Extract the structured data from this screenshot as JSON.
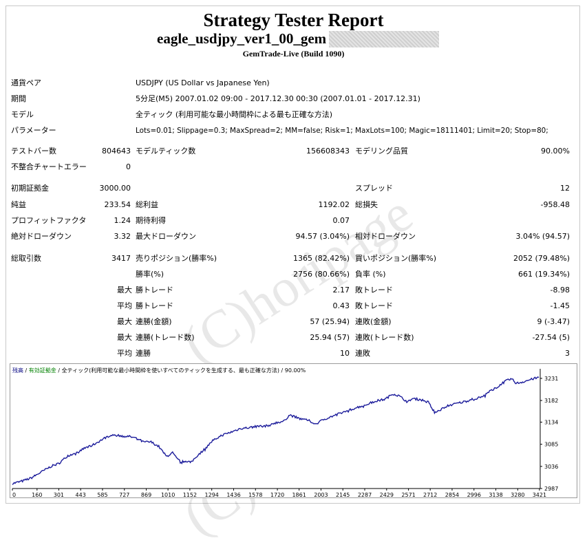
{
  "header": {
    "title": "Strategy Tester Report",
    "ea_name": "eagle_usdjpy_ver1_00_gem",
    "build": "GemTrade-Live (Build 1090)"
  },
  "info_rows": [
    {
      "label": "通貨ペア",
      "value": "USDJPY (US Dollar vs Japanese Yen)"
    },
    {
      "label": "期間",
      "value": "5分足(M5) 2007.01.02 09:00 - 2017.12.30 00:30 (2007.01.01 - 2017.12.31)"
    },
    {
      "label": "モデル",
      "value": "全ティック (利用可能な最小時間枠による最も正確な方法)"
    },
    {
      "label": "パラメーター",
      "value": "Lots=0.01; Slippage=0.3; MaxSpread=2; MM=false; Risk=1; MaxLots=100; Magic=18111401; Limit=20; Stop=80;"
    }
  ],
  "stats": {
    "bars_label": "テストバー数",
    "bars": "804643",
    "ticks_label": "モデルティック数",
    "ticks": "156608343",
    "quality_label": "モデリング品質",
    "quality": "90.00%",
    "mismatch_label": "不整合チャートエラー",
    "mismatch": "0",
    "deposit_label": "初期証拠金",
    "deposit": "3000.00",
    "spread_label": "スプレッド",
    "spread": "12",
    "net_label": "純益",
    "net": "233.54",
    "gross_profit_label": "総利益",
    "gross_profit": "1192.02",
    "gross_loss_label": "総損失",
    "gross_loss": "-958.48",
    "pf_label": "プロフィットファクタ",
    "pf": "1.24",
    "expected_label": "期待利得",
    "expected": "0.07",
    "abs_dd_label": "絶対ドローダウン",
    "abs_dd": "3.32",
    "max_dd_label": "最大ドローダウン",
    "max_dd": "94.57 (3.04%)",
    "rel_dd_label": "相対ドローダウン",
    "rel_dd": "3.04% (94.57)",
    "trades_label": "総取引数",
    "trades": "3417",
    "short_label": "売りポジション(勝率%)",
    "short": "1365 (82.42%)",
    "long_label": "買いポジション(勝率%)",
    "long": "2052 (79.48%)",
    "win_label": "勝率(%)",
    "win": "2756 (80.66%)",
    "loss_label": "負率 (%)",
    "loss": "661 (19.34%)",
    "max_word": "最大",
    "avg_word": "平均",
    "largest_win_label": "勝トレード",
    "largest_win": "2.17",
    "largest_loss_label": "敗トレード",
    "largest_loss": "-8.98",
    "avg_win_label": "勝トレード",
    "avg_win": "0.43",
    "avg_loss_label": "敗トレード",
    "avg_loss": "-1.45",
    "max_cons_win_label": "連勝(金額)",
    "max_cons_win": "57 (25.94)",
    "max_cons_loss_label": "連敗(金額)",
    "max_cons_loss": "9 (-3.47)",
    "max_cons_profit_label": "連勝(トレード数)",
    "max_cons_profit": "25.94 (57)",
    "max_cons_lossamt_label": "連敗(トレード数)",
    "max_cons_lossamt": "-27.54 (5)",
    "avg_cons_win_label": "連勝",
    "avg_cons_win": "10",
    "avg_cons_loss_label": "連敗",
    "avg_cons_loss": "3"
  },
  "chart_legend": {
    "balance": "残高",
    "sep1": " / ",
    "equity": "有効証拠金",
    "sep2": " / ",
    "desc": "全ティック(利用可能な最小時間枠を使いすべてのティックを生成する、最も正確な方法)",
    "sep3": " / ",
    "quality": "90.00%"
  },
  "watermark": "(C)horipage",
  "colors": {
    "balance_line": "#1a1a9a",
    "legend_balance": "#000080",
    "legend_equity": "#008000"
  },
  "chart_data": {
    "type": "line",
    "x_ticks": [
      0,
      160,
      301,
      443,
      585,
      727,
      869,
      1010,
      1152,
      1294,
      1436,
      1578,
      1720,
      1861,
      2003,
      2145,
      2287,
      2429,
      2571,
      2712,
      2854,
      2996,
      3138,
      3280,
      3421
    ],
    "y_ticks": [
      2987,
      3036,
      3085,
      3134,
      3182,
      3231
    ],
    "xlim": [
      0,
      3417
    ],
    "ylim": [
      2987,
      3240
    ],
    "anchors": [
      [
        0,
        2998
      ],
      [
        60,
        3003
      ],
      [
        120,
        3010
      ],
      [
        190,
        3024
      ],
      [
        250,
        3036
      ],
      [
        300,
        3042
      ],
      [
        360,
        3060
      ],
      [
        410,
        3064
      ],
      [
        460,
        3075
      ],
      [
        520,
        3083
      ],
      [
        580,
        3095
      ],
      [
        640,
        3106
      ],
      [
        700,
        3104
      ],
      [
        760,
        3102
      ],
      [
        810,
        3098
      ],
      [
        850,
        3090
      ],
      [
        900,
        3090
      ],
      [
        950,
        3080
      ],
      [
        1000,
        3058
      ],
      [
        1040,
        3066
      ],
      [
        1070,
        3052
      ],
      [
        1100,
        3046
      ],
      [
        1130,
        3048
      ],
      [
        1160,
        3045
      ],
      [
        1200,
        3060
      ],
      [
        1250,
        3075
      ],
      [
        1300,
        3093
      ],
      [
        1360,
        3105
      ],
      [
        1420,
        3112
      ],
      [
        1480,
        3120
      ],
      [
        1540,
        3122
      ],
      [
        1600,
        3125
      ],
      [
        1660,
        3126
      ],
      [
        1700,
        3132
      ],
      [
        1760,
        3136
      ],
      [
        1800,
        3150
      ],
      [
        1860,
        3142
      ],
      [
        1920,
        3138
      ],
      [
        1970,
        3130
      ],
      [
        2020,
        3140
      ],
      [
        2100,
        3150
      ],
      [
        2180,
        3160
      ],
      [
        2230,
        3166
      ],
      [
        2290,
        3172
      ],
      [
        2350,
        3180
      ],
      [
        2420,
        3185
      ],
      [
        2470,
        3197
      ],
      [
        2510,
        3192
      ],
      [
        2560,
        3180
      ],
      [
        2600,
        3186
      ],
      [
        2650,
        3184
      ],
      [
        2700,
        3178
      ],
      [
        2740,
        3156
      ],
      [
        2780,
        3162
      ],
      [
        2820,
        3170
      ],
      [
        2880,
        3175
      ],
      [
        2940,
        3180
      ],
      [
        2990,
        3185
      ],
      [
        3050,
        3190
      ],
      [
        3110,
        3205
      ],
      [
        3160,
        3215
      ],
      [
        3200,
        3225
      ],
      [
        3240,
        3230
      ],
      [
        3270,
        3220
      ],
      [
        3300,
        3222
      ],
      [
        3340,
        3226
      ],
      [
        3380,
        3230
      ],
      [
        3417,
        3233
      ]
    ]
  }
}
